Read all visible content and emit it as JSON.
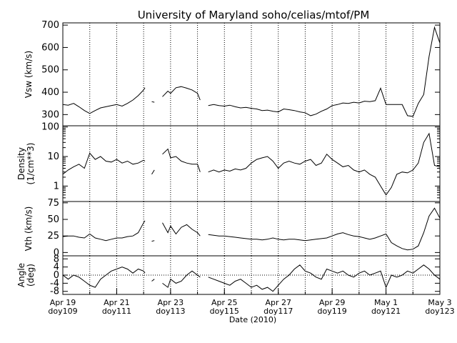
{
  "chart_data": {
    "title": "University of Maryland  soho/celias/mtof/PM",
    "xlabel": "Date (2010)",
    "type": "line",
    "x_unit": "day of year 2010",
    "xlim": [
      109,
      123
    ],
    "x_ticks": [
      {
        "day": 109,
        "date": "Apr 19",
        "doy": "doy109"
      },
      {
        "day": 111,
        "date": "Apr 21",
        "doy": "doy111"
      },
      {
        "day": 113,
        "date": "Apr 23",
        "doy": "doy113"
      },
      {
        "day": 115,
        "date": "Apr 25",
        "doy": "doy115"
      },
      {
        "day": 117,
        "date": "Apr 27",
        "doy": "doy117"
      },
      {
        "day": 119,
        "date": "Apr 29",
        "doy": "doy119"
      },
      {
        "day": 121,
        "date": "May 1",
        "doy": "doy121"
      },
      {
        "day": 123,
        "date": "May 3",
        "doy": "doy123"
      }
    ],
    "gridlines_x_days": [
      110,
      111,
      112,
      113,
      114,
      115,
      116,
      117,
      118,
      119,
      120,
      121,
      122
    ],
    "panels": [
      {
        "id": "vsw",
        "ylabel": [
          "Vsw (km/s)"
        ],
        "scale": "linear",
        "ylim": [
          250,
          710
        ],
        "yticks": [
          300,
          400,
          500,
          600,
          700
        ],
        "zero_line": false,
        "series": [
          {
            "x": [
              109.0,
              109.2,
              109.4,
              109.6,
              109.8,
              110.0,
              110.2,
              110.4,
              110.6,
              110.8,
              111.0,
              111.2,
              111.4,
              111.6,
              111.8,
              112.0,
              112.05
            ],
            "y": [
              345,
              342,
              350,
              335,
              318,
              305,
              318,
              330,
              335,
              340,
              345,
              338,
              350,
              365,
              385,
              410,
              420
            ]
          },
          {
            "x": [
              112.3,
              112.4
            ],
            "y": [
              358,
              355
            ]
          },
          {
            "x": [
              112.7,
              112.9,
              113.0,
              113.2,
              113.4,
              113.6,
              113.8,
              114.0,
              114.1
            ],
            "y": [
              380,
              405,
              395,
              420,
              425,
              418,
              410,
              395,
              365
            ]
          },
          {
            "x": [
              114.4,
              114.6,
              114.8,
              115.0,
              115.2,
              115.4,
              115.6,
              115.8,
              116.0,
              116.2,
              116.4,
              116.6,
              116.8,
              117.0,
              117.2,
              117.4,
              117.6,
              117.8,
              118.0,
              118.2,
              118.4,
              118.6,
              118.8,
              119.0,
              119.2,
              119.4,
              119.6,
              119.8,
              120.0,
              120.2,
              120.4,
              120.6,
              120.8,
              121.0,
              121.2,
              121.4,
              121.6,
              121.8,
              122.0,
              122.2,
              122.4,
              122.6,
              122.8,
              123.0
            ],
            "y": [
              340,
              345,
              340,
              338,
              342,
              335,
              330,
              332,
              328,
              325,
              318,
              320,
              315,
              312,
              325,
              322,
              318,
              312,
              308,
              295,
              302,
              315,
              325,
              340,
              345,
              352,
              350,
              355,
              352,
              360,
              358,
              362,
              418,
              345,
              345,
              345,
              345,
              295,
              292,
              350,
              390,
              560,
              690,
              620
            ]
          }
        ]
      },
      {
        "id": "density",
        "ylabel": [
          "Density",
          "(1/cm**3)"
        ],
        "scale": "log",
        "ylim": [
          0.3,
          110
        ],
        "yticks": [
          1,
          10,
          100
        ],
        "zero_line": false,
        "series": [
          {
            "x": [
              109.0,
              109.2,
              109.4,
              109.6,
              109.8,
              110.0,
              110.2,
              110.4,
              110.6,
              110.8,
              111.0,
              111.2,
              111.4,
              111.6,
              111.8,
              112.0,
              112.05
            ],
            "y": [
              2.5,
              3.5,
              4.5,
              5.5,
              4.0,
              13.0,
              8.0,
              10.0,
              7.0,
              6.5,
              8.0,
              6.0,
              7.0,
              5.5,
              6.0,
              7.5,
              7.0
            ]
          },
          {
            "x": [
              112.3,
              112.4
            ],
            "y": [
              2.5,
              3.5
            ]
          },
          {
            "x": [
              112.7,
              112.9,
              113.0,
              113.2,
              113.4,
              113.6,
              113.8,
              114.0,
              114.1
            ],
            "y": [
              12.0,
              18.0,
              9.0,
              10.0,
              7.0,
              6.0,
              5.5,
              5.5,
              3.0
            ]
          },
          {
            "x": [
              114.4,
              114.6,
              114.8,
              115.0,
              115.2,
              115.4,
              115.6,
              115.8,
              116.0,
              116.2,
              116.4,
              116.6,
              116.8,
              117.0,
              117.2,
              117.4,
              117.6,
              117.8,
              118.0,
              118.2,
              118.4,
              118.6,
              118.8,
              119.0,
              119.2,
              119.4,
              119.6,
              119.8,
              120.0,
              120.2,
              120.4,
              120.6,
              120.8,
              121.0,
              121.2,
              121.4,
              121.6,
              121.8,
              122.0,
              122.2,
              122.4,
              122.6,
              122.8,
              123.0
            ],
            "y": [
              3.0,
              3.5,
              3.0,
              3.5,
              3.2,
              3.8,
              3.5,
              4.0,
              6.0,
              8.0,
              9.0,
              10.0,
              7.0,
              4.0,
              6.0,
              7.0,
              6.0,
              5.5,
              7.0,
              8.0,
              5.0,
              6.0,
              12.0,
              8.0,
              6.0,
              4.5,
              5.0,
              3.5,
              3.0,
              3.5,
              2.5,
              2.0,
              1.0,
              0.5,
              0.9,
              2.5,
              3.0,
              2.8,
              3.5,
              6.0,
              30.0,
              60.0,
              5.0,
              4.5
            ]
          }
        ]
      },
      {
        "id": "vth",
        "ylabel": [
          "Vth (km/s)"
        ],
        "scale": "linear",
        "ylim": [
          -5,
          77
        ],
        "yticks": [
          0,
          25,
          50,
          75
        ],
        "zero_line": false,
        "series": [
          {
            "x": [
              109.0,
              109.2,
              109.4,
              109.6,
              109.8,
              110.0,
              110.2,
              110.4,
              110.6,
              110.8,
              111.0,
              111.2,
              111.4,
              111.6,
              111.8,
              112.0,
              112.05
            ],
            "y": [
              24,
              25,
              25,
              23,
              22,
              28,
              22,
              20,
              18,
              20,
              22,
              22,
              24,
              25,
              30,
              45,
              48
            ]
          },
          {
            "x": [
              112.3,
              112.4
            ],
            "y": [
              17,
              18
            ]
          },
          {
            "x": [
              112.7,
              112.9,
              113.0,
              113.2,
              113.4,
              113.6,
              113.8,
              114.0,
              114.1
            ],
            "y": [
              45,
              30,
              40,
              28,
              38,
              42,
              35,
              30,
              25
            ]
          },
          {
            "x": [
              114.4,
              114.6,
              114.8,
              115.0,
              115.2,
              115.4,
              115.6,
              115.8,
              116.0,
              116.2,
              116.4,
              116.6,
              116.8,
              117.0,
              117.2,
              117.4,
              117.6,
              117.8,
              118.0,
              118.2,
              118.4,
              118.6,
              118.8,
              119.0,
              119.2,
              119.4,
              119.6,
              119.8,
              120.0,
              120.2,
              120.4,
              120.6,
              120.8,
              121.0,
              121.2,
              121.4,
              121.6,
              121.8,
              122.0,
              122.2,
              122.4,
              122.6,
              122.8,
              123.0
            ],
            "y": [
              27,
              26,
              25,
              25,
              24,
              23,
              22,
              21,
              20,
              20,
              19,
              20,
              22,
              20,
              19,
              20,
              20,
              19,
              18,
              19,
              20,
              21,
              22,
              25,
              28,
              30,
              27,
              25,
              24,
              22,
              20,
              22,
              25,
              28,
              15,
              10,
              6,
              4,
              5,
              10,
              30,
              55,
              67,
              52
            ]
          }
        ]
      },
      {
        "id": "angle",
        "ylabel": [
          "Angle",
          "(deg)"
        ],
        "scale": "linear",
        "ylim": [
          -9.5,
          9.5
        ],
        "yticks": [
          -8,
          -4,
          0,
          4,
          8
        ],
        "zero_line": true,
        "series": [
          {
            "x": [
              109.0,
              109.2,
              109.4,
              109.6,
              109.8,
              110.0,
              110.2,
              110.4,
              110.6,
              110.8,
              111.0,
              111.2,
              111.4,
              111.6,
              111.8,
              112.0,
              112.05
            ],
            "y": [
              0,
              -2,
              0,
              -1,
              -3,
              -5,
              -6,
              -2,
              0,
              2,
              3,
              4,
              3,
              1,
              3,
              2,
              1
            ]
          },
          {
            "x": [
              112.3,
              112.4
            ],
            "y": [
              -3,
              -2
            ]
          },
          {
            "x": [
              112.7,
              112.9,
              113.0,
              113.2,
              113.4,
              113.6,
              113.8,
              114.0,
              114.1
            ],
            "y": [
              -4,
              -6,
              -2,
              -4,
              -3,
              0,
              2,
              0,
              -1
            ]
          },
          {
            "x": [
              114.4,
              114.6,
              114.8,
              115.0,
              115.2,
              115.4,
              115.6,
              115.8,
              116.0,
              116.2,
              116.4,
              116.6,
              116.8,
              117.0,
              117.2,
              117.4,
              117.6,
              117.8,
              118.0,
              118.2,
              118.4,
              118.6,
              118.8,
              119.0,
              119.2,
              119.4,
              119.6,
              119.8,
              120.0,
              120.2,
              120.4,
              120.6,
              120.8,
              121.0,
              121.2,
              121.4,
              121.6,
              121.8,
              122.0,
              122.2,
              122.4,
              122.6,
              122.8,
              123.0
            ],
            "y": [
              -1,
              -2,
              -3,
              -4,
              -5,
              -3,
              -2,
              -4,
              -6,
              -5,
              -7,
              -6,
              -8,
              -5,
              -2,
              0,
              3,
              5,
              2,
              1,
              -1,
              -2,
              3,
              2,
              1,
              2,
              0,
              -1,
              1,
              2,
              0,
              1,
              2,
              -6,
              0,
              -1,
              0,
              2,
              1,
              3,
              5,
              3,
              0,
              -2
            ]
          }
        ]
      }
    ]
  }
}
